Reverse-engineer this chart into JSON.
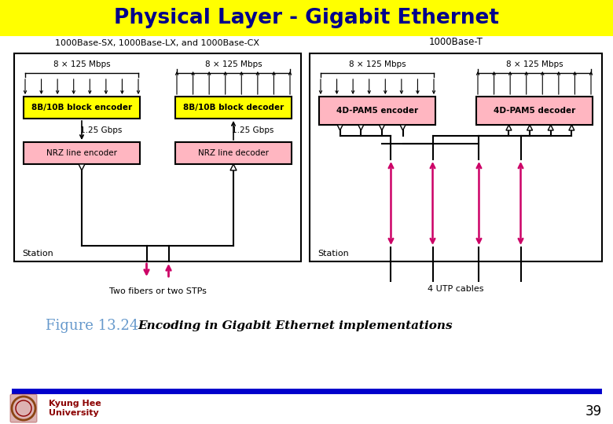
{
  "title": "Physical Layer - Gigabit Ethernet",
  "title_bg": "#FFFF00",
  "title_color": "#00008B",
  "fig_bg": "#FFFFFF",
  "figure_caption_prefix": "Figure 13.24",
  "figure_caption_prefix_color": "#6699CC",
  "figure_caption_text": "Encoding in Gigabit Ethernet implementations",
  "figure_caption_text_color": "#000000",
  "page_number": "39",
  "left_diagram_label": "1000Base-SX, 1000Base-LX, and 1000Base-CX",
  "right_diagram_label": "1000Base-T",
  "left_encoder_box": "8B/10B block encoder",
  "left_decoder_box": "8B/10B block decoder",
  "left_enc_line": "NRZ line encoder",
  "left_dec_line": "NRZ line decoder",
  "right_encoder_box": "4D-PAM5 encoder",
  "right_decoder_box": "4D-PAM5 decoder",
  "box_yellow": "#FFFF00",
  "box_pink": "#FFB6C1",
  "box_outline": "#000000",
  "arrow_color": "#000000",
  "magenta_arrow": "#CC0066",
  "station_left": "Station",
  "station_right": "Station",
  "fiber_label": "Two fibers or two STPs",
  "utp_label": "4 UTP cables",
  "mbps_label": "8 × 125 Mbps",
  "gbps_label": "1.25 Gbps",
  "kyung_hee_text1": "Kyung Hee",
  "kyung_hee_text2": "University",
  "kyung_hee_color": "#8B0000",
  "line_color": "#0000CC"
}
